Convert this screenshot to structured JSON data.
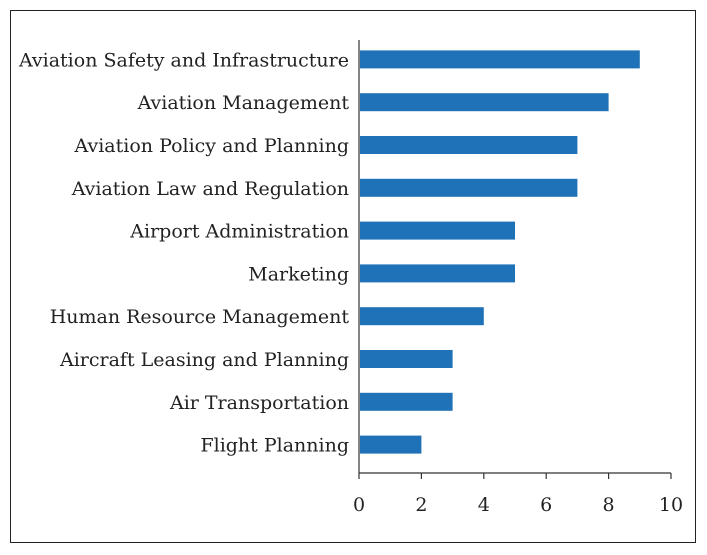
{
  "chart_data": {
    "type": "bar",
    "orientation": "horizontal",
    "categories": [
      "Aviation Safety and Infrastructure",
      "Aviation Management",
      "Aviation Policy and Planning",
      "Aviation Law and Regulation",
      "Airport Administration",
      "Marketing",
      "Human Resource Management",
      "Aircraft Leasing and Planning",
      "Air Transportation",
      "Flight Planning"
    ],
    "values": [
      9,
      8,
      7,
      7,
      5,
      5,
      4,
      3,
      3,
      2
    ],
    "xlim": [
      0,
      10
    ],
    "xticks": [
      "0",
      "2",
      "4",
      "6",
      "8",
      "10"
    ],
    "title": "",
    "xlabel": "",
    "ylabel": "",
    "grid": false,
    "legend": "none",
    "bar_color": "#1f72b8"
  }
}
